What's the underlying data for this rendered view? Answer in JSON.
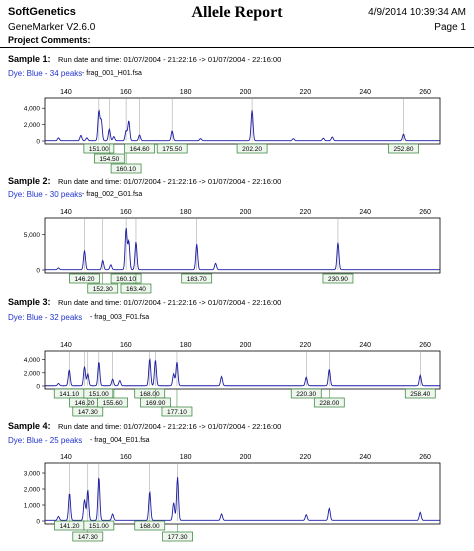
{
  "header": {
    "company": "SoftGenetics",
    "title": "Allele Report",
    "datetime": "4/9/2014 10:39:34 AM",
    "version": "GeneMarker V2.6.0",
    "page": "Page 1",
    "comments_label": "Project Comments:"
  },
  "colors": {
    "trace": "#1a1aa6",
    "dye": "#2233cc",
    "label_border": "#2e7d32",
    "label_fill": "#eef6ee"
  },
  "x_ticks": [
    140,
    160,
    180,
    200,
    220,
    240,
    260
  ],
  "samples": [
    {
      "label": "Sample 1:",
      "run": "Run date and time: 01/07/2004 - 21:22:16 -> 01/07/2004 - 22:16:00",
      "dye": "Dye: Blue - 34 peaks",
      "file": "- frag_001_H01.fsa",
      "y_ticks": [
        "4,000",
        "2,000",
        "0"
      ],
      "y_max": 5000,
      "alleles": [
        "151.00",
        "154.50",
        "160.10",
        "164.60",
        "175.50",
        "202.20",
        "252.80"
      ],
      "chart_data": {
        "type": "line",
        "x_range": [
          133,
          265
        ],
        "peaks": [
          {
            "x": 137.5,
            "y": 350
          },
          {
            "x": 145.0,
            "y": 650
          },
          {
            "x": 147.0,
            "y": 350
          },
          {
            "x": 151.0,
            "y": 3600
          },
          {
            "x": 151.8,
            "y": 2500
          },
          {
            "x": 154.5,
            "y": 1400
          },
          {
            "x": 156.0,
            "y": 500
          },
          {
            "x": 160.1,
            "y": 1200
          },
          {
            "x": 161.0,
            "y": 2400
          },
          {
            "x": 164.6,
            "y": 700
          },
          {
            "x": 175.5,
            "y": 1200
          },
          {
            "x": 185.0,
            "y": 250
          },
          {
            "x": 202.2,
            "y": 3700
          },
          {
            "x": 216.0,
            "y": 250
          },
          {
            "x": 226.0,
            "y": 300
          },
          {
            "x": 229.0,
            "y": 450
          },
          {
            "x": 252.8,
            "y": 800
          }
        ]
      }
    },
    {
      "label": "Sample 2:",
      "run": "Run date and time: 01/07/2004 - 21:22:16 -> 01/07/2004 - 22:16:00",
      "dye": "Dye: Blue - 30 peaks",
      "file": "- frag_002_G01.fsa",
      "y_ticks": [
        "5,000",
        "0"
      ],
      "y_max": 7000,
      "alleles": [
        "146.20",
        "152.30",
        "160.10",
        "163.40",
        "183.70",
        "230.90"
      ],
      "chart_data": {
        "type": "line",
        "x_range": [
          133,
          265
        ],
        "peaks": [
          {
            "x": 137.5,
            "y": 250
          },
          {
            "x": 146.2,
            "y": 2700
          },
          {
            "x": 152.3,
            "y": 1300
          },
          {
            "x": 155.0,
            "y": 700
          },
          {
            "x": 160.1,
            "y": 5800
          },
          {
            "x": 161.0,
            "y": 4000
          },
          {
            "x": 163.4,
            "y": 3900
          },
          {
            "x": 183.7,
            "y": 3600
          },
          {
            "x": 190.0,
            "y": 900
          },
          {
            "x": 230.9,
            "y": 3800
          }
        ]
      }
    },
    {
      "label": "Sample 3:",
      "run": "Run date and time: 01/07/2004 - 21:22:16 -> 01/07/2004 - 22:16:00",
      "dye": "Dye: Blue - 32 peaks",
      "file": "- frag_003_F01.fsa",
      "y_ticks": [
        "4,000",
        "2,000",
        "0"
      ],
      "y_max": 5000,
      "alleles": [
        "141.10",
        "146.20",
        "147.30",
        "151.00",
        "155.60",
        "168.00",
        "169.90",
        "177.10",
        "220.30",
        "228.00",
        "258.40"
      ],
      "chart_data": {
        "type": "line",
        "x_range": [
          133,
          265
        ],
        "peaks": [
          {
            "x": 137.5,
            "y": 350
          },
          {
            "x": 141.1,
            "y": 2400
          },
          {
            "x": 146.2,
            "y": 2900
          },
          {
            "x": 147.3,
            "y": 1800
          },
          {
            "x": 151.0,
            "y": 3600
          },
          {
            "x": 155.6,
            "y": 1000
          },
          {
            "x": 158.0,
            "y": 800
          },
          {
            "x": 168.0,
            "y": 4100
          },
          {
            "x": 169.9,
            "y": 3900
          },
          {
            "x": 176.0,
            "y": 1800
          },
          {
            "x": 177.1,
            "y": 3600
          },
          {
            "x": 192.0,
            "y": 1400
          },
          {
            "x": 220.3,
            "y": 1300
          },
          {
            "x": 228.0,
            "y": 2500
          },
          {
            "x": 258.4,
            "y": 1600
          }
        ]
      }
    },
    {
      "label": "Sample 4:",
      "run": "Run date and time: 01/07/2004 - 21:22:16 -> 01/07/2004 - 22:16:00",
      "dye": "Dye: Blue - 25 peaks",
      "file": "- frag_004_E01.fsa",
      "y_ticks": [
        "3,000",
        "2,000",
        "1,000",
        "0"
      ],
      "y_max": 3500,
      "alleles": [
        "141.20",
        "147.30",
        "151.00",
        "168.00",
        "177.30"
      ],
      "chart_data": {
        "type": "line",
        "x_range": [
          133,
          265
        ],
        "peaks": [
          {
            "x": 137.5,
            "y": 250
          },
          {
            "x": 141.2,
            "y": 1700
          },
          {
            "x": 146.2,
            "y": 1300
          },
          {
            "x": 147.3,
            "y": 1900
          },
          {
            "x": 151.0,
            "y": 2700
          },
          {
            "x": 155.6,
            "y": 400
          },
          {
            "x": 168.0,
            "y": 1800
          },
          {
            "x": 176.0,
            "y": 1100
          },
          {
            "x": 177.3,
            "y": 2700
          },
          {
            "x": 192.0,
            "y": 400
          },
          {
            "x": 220.3,
            "y": 350
          },
          {
            "x": 228.0,
            "y": 750
          },
          {
            "x": 258.4,
            "y": 500
          }
        ]
      }
    }
  ]
}
